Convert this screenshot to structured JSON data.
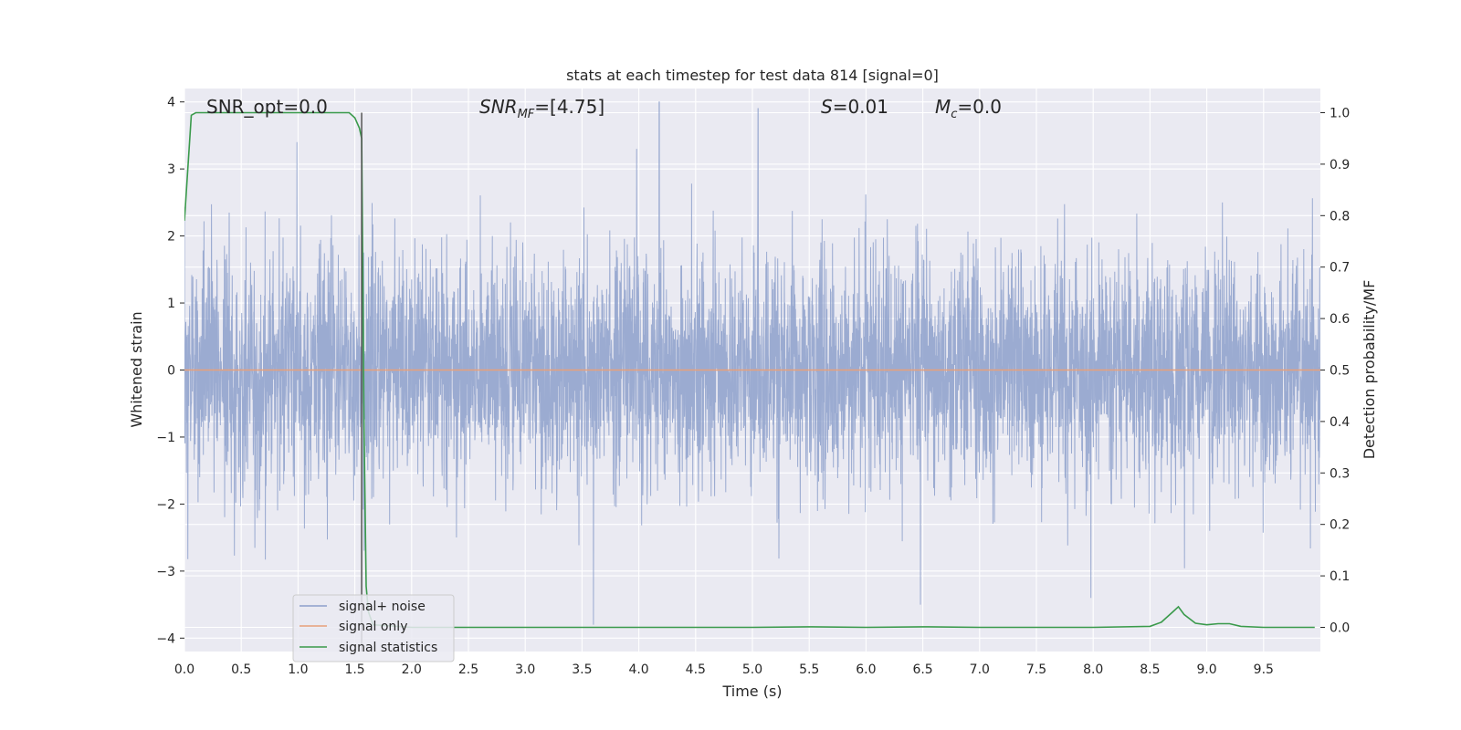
{
  "chart_data": {
    "type": "line",
    "title": "stats at each timestep for test data 814 [signal=0]",
    "xlabel": "Time (s)",
    "ylabel": "Whitened strain",
    "y2label": "Detection probability/MF",
    "xlim": [
      0.0,
      10.0
    ],
    "ylim": [
      -4.2,
      4.2
    ],
    "y2lim": [
      -0.047,
      1.047
    ],
    "x_ticks": [
      "0.0",
      "0.5",
      "1.0",
      "1.5",
      "2.0",
      "2.5",
      "3.0",
      "3.5",
      "4.0",
      "4.5",
      "5.0",
      "5.5",
      "6.0",
      "6.5",
      "7.0",
      "7.5",
      "8.0",
      "8.5",
      "9.0",
      "9.5"
    ],
    "y_ticks": [
      "4",
      "3",
      "2",
      "1",
      "0",
      "−1",
      "−2",
      "−3",
      "−4"
    ],
    "y2_ticks": [
      "1.0",
      "0.9",
      "0.8",
      "0.7",
      "0.6",
      "0.5",
      "0.4",
      "0.3",
      "0.2",
      "0.1",
      "0.0"
    ],
    "grid": true,
    "legend_position": "lower-left",
    "annotations": {
      "snr_opt": "SNR_opt=0.0",
      "snr_mf_base": "SNR",
      "snr_mf_sub": "MF",
      "snr_mf_value": "=[4.75]",
      "s_var": "S",
      "s_value": "=0.01",
      "mc_var": "M",
      "mc_sub": "c",
      "mc_value": "=0.0"
    },
    "marker_line_x": 1.56,
    "series": [
      {
        "name": "signal+ noise",
        "color": "#8da0cb",
        "axis": "left",
        "noise_sigma": 0.85,
        "noise_envelope_upper": [
          1.6,
          3.4
        ],
        "noise_envelope_lower": [
          -1.5,
          -3.8
        ],
        "notable_peaks": [
          {
            "x": 0.99,
            "y": 3.4
          },
          {
            "x": 4.18,
            "y": 4.0
          },
          {
            "x": 5.05,
            "y": 3.9
          },
          {
            "x": 3.98,
            "y": 3.3
          },
          {
            "x": 3.6,
            "y": -3.8
          },
          {
            "x": 6.48,
            "y": -3.5
          },
          {
            "x": 7.98,
            "y": -3.4
          }
        ]
      },
      {
        "name": "signal only",
        "color": "#e8a07a",
        "axis": "left",
        "x": [
          0.0,
          10.0
        ],
        "y": [
          0.0,
          0.0
        ]
      },
      {
        "name": "signal statistics",
        "color": "#3a9a4b",
        "axis": "right",
        "x": [
          0.0,
          0.06,
          0.1,
          0.5,
          1.0,
          1.45,
          1.5,
          1.54,
          1.56,
          1.58,
          1.6,
          1.62,
          1.66,
          2.0,
          3.0,
          4.0,
          5.0,
          5.5,
          6.0,
          6.5,
          7.0,
          8.0,
          8.5,
          8.6,
          8.7,
          8.75,
          8.8,
          8.9,
          9.0,
          9.1,
          9.2,
          9.3,
          9.5,
          9.95
        ],
        "y": [
          0.79,
          0.995,
          1.0,
          1.0,
          1.0,
          1.0,
          0.99,
          0.97,
          0.95,
          0.4,
          0.08,
          0.03,
          0.005,
          0.0,
          0.0,
          0.0,
          0.0,
          0.001,
          0.0,
          0.001,
          0.0,
          0.0,
          0.002,
          0.01,
          0.03,
          0.04,
          0.025,
          0.008,
          0.005,
          0.007,
          0.007,
          0.002,
          0.0,
          0.0
        ]
      }
    ]
  }
}
